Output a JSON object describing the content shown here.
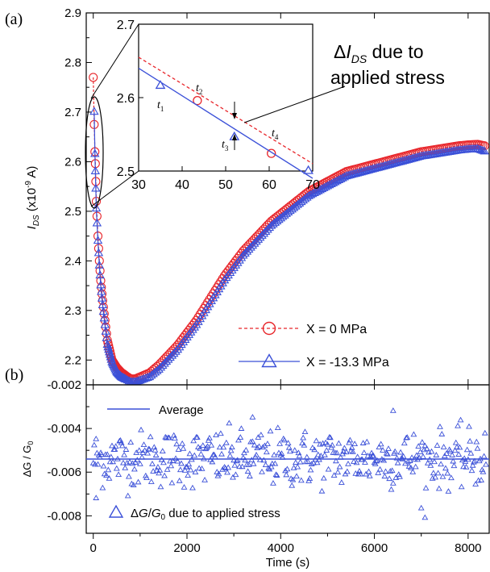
{
  "colors": {
    "red": "#e8262b",
    "blue": "#3b50d8",
    "axis": "#000000"
  },
  "panel_labels": {
    "a": "(a)",
    "b": "(b)"
  },
  "chart_data": [
    {
      "id": "a",
      "type": "scatter",
      "ylabel_main": "I",
      "ylabel_sub": "DS",
      "ylabel_unit": " (x10",
      "ylabel_exp": "-9",
      "ylabel_tail": " A)",
      "ylim": [
        2.15,
        2.9
      ],
      "yticks": [
        "2.2",
        "2.3",
        "2.4",
        "2.5",
        "2.6",
        "2.7",
        "2.8",
        "2.9"
      ],
      "xlim": [
        -150,
        8450
      ],
      "grid": false,
      "legend": [
        {
          "label": "X = 0 MPa",
          "series": "red",
          "marker": "circle",
          "line": "dashed"
        },
        {
          "label": "X = -13.3 MPa",
          "series": "blue",
          "marker": "triangle",
          "line": "solid"
        }
      ],
      "series": [
        {
          "name": "X = 0 MPa",
          "color": "#e8262b",
          "marker": "circle",
          "line": "dashed",
          "x": [
            0,
            20,
            35,
            45,
            55,
            65,
            80,
            100,
            130,
            160,
            200,
            250,
            300,
            400,
            500,
            600,
            700,
            800,
            900,
            1000,
            1200,
            1400,
            1600,
            1800,
            2000,
            2200,
            2400,
            2600,
            2800,
            3000,
            3200,
            3400,
            3600,
            3800,
            4000,
            4200,
            4400,
            4600,
            4800,
            5000,
            5200,
            5400,
            5600,
            5800,
            6000,
            6200,
            6400,
            6600,
            6800,
            7000,
            7200,
            7400,
            7600,
            7800,
            8000,
            8200,
            8350
          ],
          "y": [
            2.77,
            2.675,
            2.62,
            2.596,
            2.56,
            2.52,
            2.49,
            2.45,
            2.4,
            2.36,
            2.32,
            2.28,
            2.24,
            2.2,
            2.185,
            2.175,
            2.168,
            2.162,
            2.162,
            2.166,
            2.174,
            2.19,
            2.21,
            2.23,
            2.255,
            2.28,
            2.31,
            2.34,
            2.37,
            2.395,
            2.42,
            2.44,
            2.46,
            2.48,
            2.495,
            2.51,
            2.525,
            2.54,
            2.55,
            2.56,
            2.57,
            2.58,
            2.585,
            2.59,
            2.595,
            2.6,
            2.605,
            2.61,
            2.615,
            2.62,
            2.623,
            2.626,
            2.629,
            2.632,
            2.634,
            2.635,
            2.632
          ]
        },
        {
          "name": "X = -13.3 MPa",
          "color": "#3b50d8",
          "marker": "triangle",
          "line": "solid",
          "x": [
            20,
            35,
            45,
            55,
            65,
            80,
            100,
            130,
            160,
            200,
            250,
            300,
            400,
            500,
            600,
            700,
            800,
            900,
            1000,
            1200,
            1400,
            1600,
            1800,
            2000,
            2200,
            2400,
            2600,
            2800,
            3000,
            3200,
            3400,
            3600,
            3800,
            4000,
            4200,
            4400,
            4600,
            4800,
            5000,
            5200,
            5400,
            5600,
            5800,
            6000,
            6200,
            6400,
            6600,
            6800,
            7000,
            7200,
            7400,
            7600,
            7800,
            8000,
            8200,
            8350
          ],
          "y": [
            2.7,
            2.615,
            2.58,
            2.545,
            2.505,
            2.475,
            2.44,
            2.39,
            2.35,
            2.31,
            2.27,
            2.23,
            2.195,
            2.175,
            2.165,
            2.16,
            2.155,
            2.155,
            2.158,
            2.165,
            2.18,
            2.2,
            2.22,
            2.245,
            2.27,
            2.3,
            2.33,
            2.36,
            2.385,
            2.41,
            2.43,
            2.45,
            2.47,
            2.485,
            2.5,
            2.515,
            2.53,
            2.54,
            2.55,
            2.56,
            2.57,
            2.575,
            2.58,
            2.585,
            2.59,
            2.595,
            2.6,
            2.605,
            2.61,
            2.613,
            2.616,
            2.619,
            2.622,
            2.624,
            2.625,
            2.62
          ]
        }
      ]
    },
    {
      "id": "inset",
      "type": "line",
      "xlim": [
        30,
        70
      ],
      "ylim": [
        2.5,
        2.7
      ],
      "xticks": [
        "30",
        "40",
        "50",
        "60",
        "70"
      ],
      "yticks": [
        "2.5",
        "2.6",
        "2.7"
      ],
      "annotation": {
        "delta": "Δ",
        "I": "I",
        "sub": "DS",
        "rest": " due to",
        "line2": "applied stress"
      },
      "point_labels": [
        {
          "t": "t",
          "n": "1"
        },
        {
          "t": "t",
          "n": "2"
        },
        {
          "t": "t",
          "n": "3"
        },
        {
          "t": "t",
          "n": "4"
        }
      ],
      "series": [
        {
          "name": "X = 0 MPa",
          "color": "#e8262b",
          "line": "dashed",
          "x": [
            30,
            70
          ],
          "y": [
            2.655,
            2.51
          ],
          "markers_x": [
            43.5,
            60.5
          ],
          "markers_y": [
            2.596,
            2.524
          ]
        },
        {
          "name": "X = -13.3 MPa",
          "color": "#3b50d8",
          "line": "solid",
          "x": [
            30,
            70
          ],
          "y": [
            2.64,
            2.49
          ],
          "markers_x": [
            35,
            52,
            69
          ],
          "markers_y": [
            2.616,
            2.546,
            2.5
          ]
        }
      ]
    },
    {
      "id": "b",
      "type": "scatter",
      "ylabel": "ΔG / G",
      "ylabel_sub": "0",
      "ylim": [
        -0.0088,
        -0.002
      ],
      "yticks": [
        "-0.008",
        "-0.006",
        "-0.004",
        "-0.002"
      ],
      "xlim": [
        -150,
        8450
      ],
      "xticks": [
        "0",
        "2000",
        "4000",
        "6000",
        "8000"
      ],
      "xlabel": "Time (s)",
      "grid": false,
      "average": -0.0054,
      "legend_average": "Average",
      "legend_series": {
        "prefix": "Δ",
        "G": "G",
        "slash": "/",
        "G0": "G",
        "sub": "0",
        "rest": " due to applied stress"
      },
      "series": [
        {
          "name": "ΔG/G0 due to applied stress",
          "color": "#3b50d8",
          "marker": "triangle",
          "x_start": 0,
          "x_step": 20,
          "count": 420,
          "mean": -0.0054,
          "std": 0.00065,
          "outliers_x": [
            60,
            3400,
            6400,
            7080
          ],
          "outliers_y": [
            -0.0072,
            -0.0035,
            -0.0032,
            -0.0081
          ]
        }
      ]
    }
  ]
}
